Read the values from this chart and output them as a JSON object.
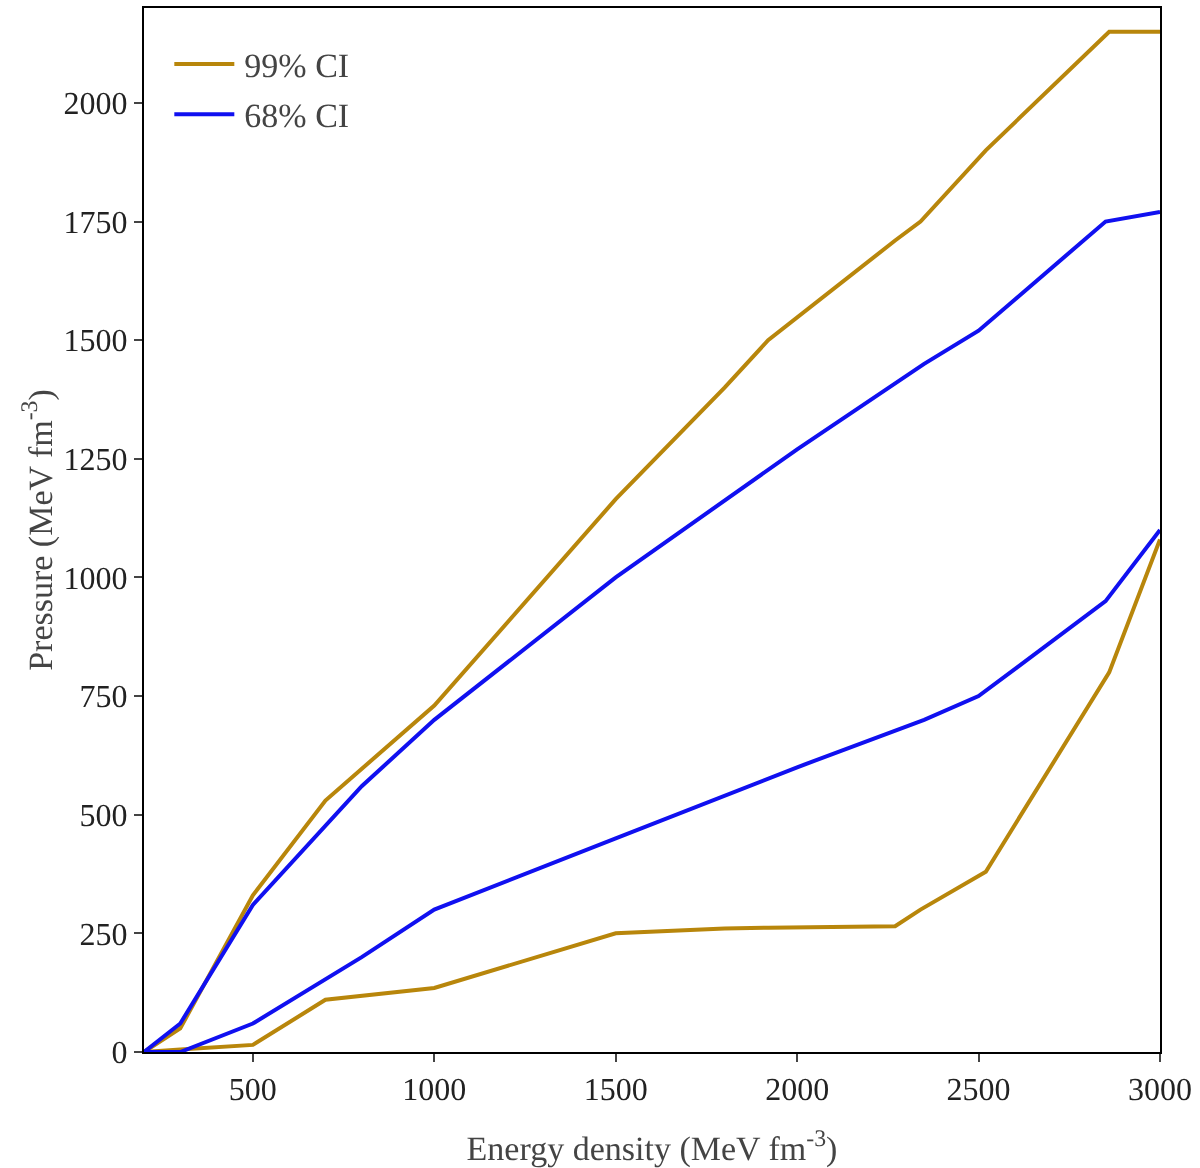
{
  "chart_data": {
    "type": "line",
    "xlabel": "Energy density (MeV fm$^{-3}$)",
    "ylabel": "Pressure (MeV fm$^{-3}$)",
    "xlim": [
      200,
      3000
    ],
    "xticks": [
      500,
      1000,
      1500,
      2000,
      2500,
      3000
    ],
    "ylim": [
      0,
      2200
    ],
    "yticks": [
      0,
      250,
      500,
      750,
      1000,
      1250,
      1500,
      1750,
      2000
    ],
    "grid": false,
    "legend": "top left",
    "series": [
      {
        "name": "99% CI",
        "color": "#b8860b",
        "x": [
          200,
          300,
          500,
          700,
          1000,
          1500,
          1800,
          1920,
          2270,
          2340,
          2520,
          2860,
          3000
        ],
        "values": [
          0,
          50,
          330,
          530,
          730,
          1165,
          1400,
          1500,
          1710,
          1750,
          1900,
          2150,
          2150
        ]
      },
      {
        "color": "#b8860b",
        "x": [
          200,
          300,
          500,
          700,
          1000,
          1500,
          1800,
          1920,
          2270,
          2340,
          2520,
          2860,
          3000
        ],
        "values": [
          0,
          5,
          15,
          110,
          135,
          250,
          260,
          262,
          265,
          300,
          380,
          800,
          1080
        ]
      },
      {
        "name": "68% CI",
        "color": "#1010f0",
        "x": [
          200,
          300,
          500,
          800,
          1000,
          1500,
          2000,
          2350,
          2500,
          2850,
          3000
        ],
        "values": [
          0,
          60,
          310,
          560,
          700,
          1000,
          1270,
          1450,
          1520,
          1750,
          1770
        ]
      },
      {
        "color": "#1010f0",
        "x": [
          200,
          300,
          500,
          800,
          1000,
          1500,
          2000,
          2350,
          2500,
          2850,
          3000
        ],
        "values": [
          0,
          0,
          60,
          200,
          300,
          450,
          600,
          700,
          750,
          950,
          1100
        ]
      }
    ]
  }
}
